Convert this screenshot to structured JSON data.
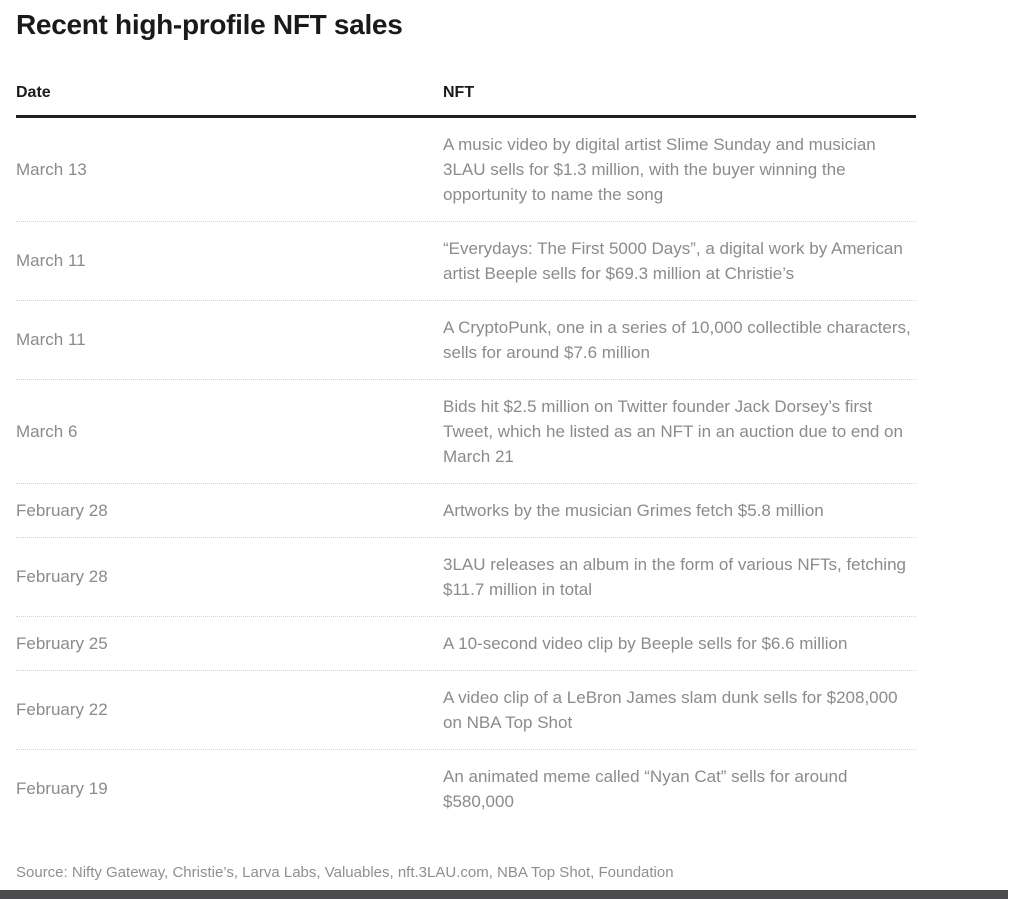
{
  "chart_data": {
    "type": "table",
    "title": "Recent high-profile NFT sales",
    "columns": [
      "Date",
      "NFT"
    ],
    "rows": [
      [
        "March 13",
        "A music video by digital artist Slime Sunday and musician 3LAU sells for $1.3 million, with the buyer winning the opportunity to name the song"
      ],
      [
        "March 11",
        "“Everydays: The First 5000 Days”, a digital work by American artist Beeple sells for $69.3 million at Christie’s"
      ],
      [
        "March 11",
        "A CryptoPunk, one in a series of 10,000 collectible characters, sells for around $7.6 million"
      ],
      [
        "March 6",
        "Bids hit $2.5 million on Twitter founder Jack Dorsey’s first Tweet, which he listed as an NFT in an auction due to end on March 21"
      ],
      [
        "February 28",
        "Artworks by the musician Grimes fetch $5.8 million"
      ],
      [
        "February 28",
        "3LAU releases an album in the form of various NFTs, fetching $11.7 million in total"
      ],
      [
        "February 25",
        "A 10-second video clip by Beeple sells for $6.6 million"
      ],
      [
        "February 22",
        "A video clip of a LeBron James slam dunk sells for $208,000 on NBA Top Shot"
      ],
      [
        "February 19",
        "An animated meme called “Nyan Cat” sells for around $580,000"
      ]
    ],
    "source": "Source: Nifty Gateway, Christie’s, Larva Labs, Valuables, nft.3LAU.com, NBA Top Shot, Foundation",
    "legend": "none",
    "grid": "row-dividers"
  },
  "colors": {
    "heading_text": "#1a1a1a",
    "body_text": "#8b8b8b",
    "header_rule": "#231f20",
    "row_divider": "#d4d4d4",
    "footer_bar": "#4b4b4d",
    "background": "#ffffff"
  }
}
